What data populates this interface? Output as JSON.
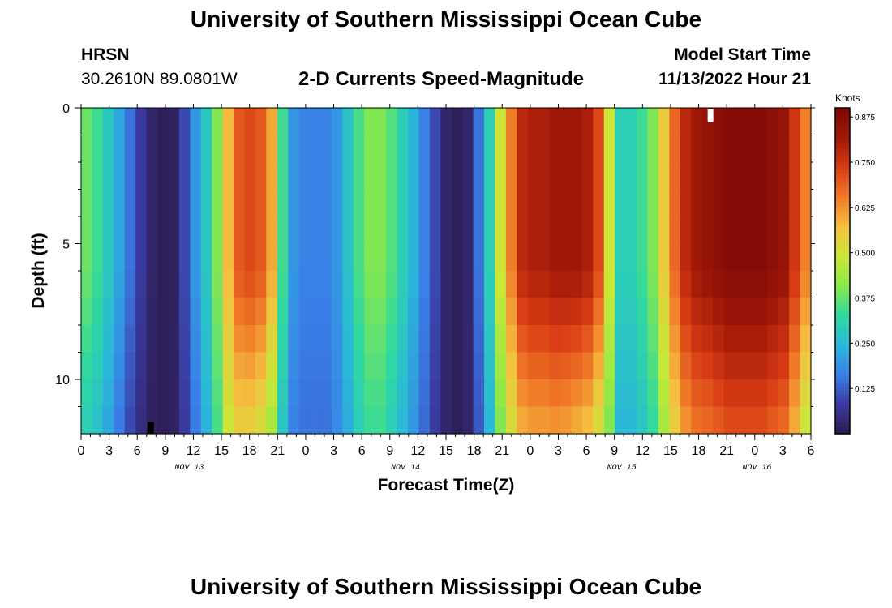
{
  "header": {
    "title": "University of Southern Mississippi Ocean Cube",
    "station": "HRSN",
    "coords": "30.2610N  89.0801W",
    "chart_title": "2-D Currents Speed-Magnitude",
    "start_label": "Model Start Time",
    "start_value": "11/13/2022 Hour 21"
  },
  "footer": {
    "title": "University of Southern Mississippi Ocean Cube"
  },
  "colors": {
    "scale": [
      "#2d1b4e",
      "#3a3aa0",
      "#3a7ee8",
      "#2ab8d8",
      "#2fd9a0",
      "#8ce84a",
      "#c8e838",
      "#f5c040",
      "#f07a28",
      "#d83c14",
      "#a01808",
      "#7a0806"
    ]
  },
  "chart_data": {
    "type": "heatmap",
    "title": "2-D Currents Speed-Magnitude",
    "xlabel": "Forecast Time(Z)",
    "ylabel": "Depth (ft)",
    "x_range": [
      0,
      81
    ],
    "y_range": [
      0,
      12
    ],
    "x_ticks": [
      "0",
      "3",
      "6",
      "9",
      "12",
      "15",
      "18",
      "21",
      "0",
      "3",
      "6",
      "9",
      "12",
      "15",
      "18",
      "21",
      "0",
      "3",
      "6",
      "9",
      "12",
      "15",
      "18",
      "21",
      "0",
      "3",
      "6"
    ],
    "y_ticks": [
      "0",
      "5",
      "10"
    ],
    "day_labels": [
      {
        "label": "NOV 13",
        "hour": 12
      },
      {
        "label": "NOV 14",
        "hour": 36
      },
      {
        "label": "NOV 15",
        "hour": 60
      },
      {
        "label": "NOV 16",
        "hour": 75
      }
    ],
    "colorbar": {
      "title": "Knots",
      "range": [
        0,
        0.9
      ],
      "ticks": [
        "0.125",
        "0.250",
        "0.375",
        "0.500",
        "0.625",
        "0.750",
        "0.875"
      ]
    },
    "surface_speed_knots": [
      0.38,
      0.34,
      0.28,
      0.22,
      0.15,
      0.08,
      0.03,
      0.01,
      0.02,
      0.1,
      0.2,
      0.28,
      0.4,
      0.58,
      0.7,
      0.72,
      0.7,
      0.6,
      0.34,
      0.2,
      0.17,
      0.17,
      0.17,
      0.2,
      0.27,
      0.35,
      0.4,
      0.4,
      0.36,
      0.3,
      0.24,
      0.17,
      0.1,
      0.03,
      0.01,
      0.03,
      0.15,
      0.3,
      0.5,
      0.65,
      0.78,
      0.8,
      0.8,
      0.82,
      0.82,
      0.82,
      0.8,
      0.72,
      0.5,
      0.3,
      0.3,
      0.34,
      0.4,
      0.55,
      0.68,
      0.78,
      0.82,
      0.84,
      0.86,
      0.88,
      0.88,
      0.88,
      0.88,
      0.86,
      0.84,
      0.75,
      0.65
    ],
    "bottom_speed_knots": [
      0.3,
      0.27,
      0.22,
      0.16,
      0.1,
      0.05,
      0.02,
      0.01,
      0.02,
      0.08,
      0.16,
      0.24,
      0.35,
      0.5,
      0.55,
      0.55,
      0.52,
      0.45,
      0.28,
      0.17,
      0.15,
      0.15,
      0.15,
      0.18,
      0.23,
      0.3,
      0.34,
      0.34,
      0.3,
      0.25,
      0.2,
      0.14,
      0.08,
      0.03,
      0.01,
      0.03,
      0.12,
      0.25,
      0.4,
      0.52,
      0.6,
      0.62,
      0.62,
      0.63,
      0.62,
      0.6,
      0.58,
      0.52,
      0.4,
      0.25,
      0.25,
      0.28,
      0.33,
      0.45,
      0.55,
      0.63,
      0.67,
      0.68,
      0.7,
      0.72,
      0.72,
      0.72,
      0.72,
      0.7,
      0.68,
      0.6,
      0.5
    ],
    "min_marker": {
      "hour": 7,
      "depth_ft": 11.5,
      "color": "#000000"
    },
    "max_marker": {
      "hour": 69,
      "depth_ft": 0,
      "color": "#ffffff"
    }
  }
}
